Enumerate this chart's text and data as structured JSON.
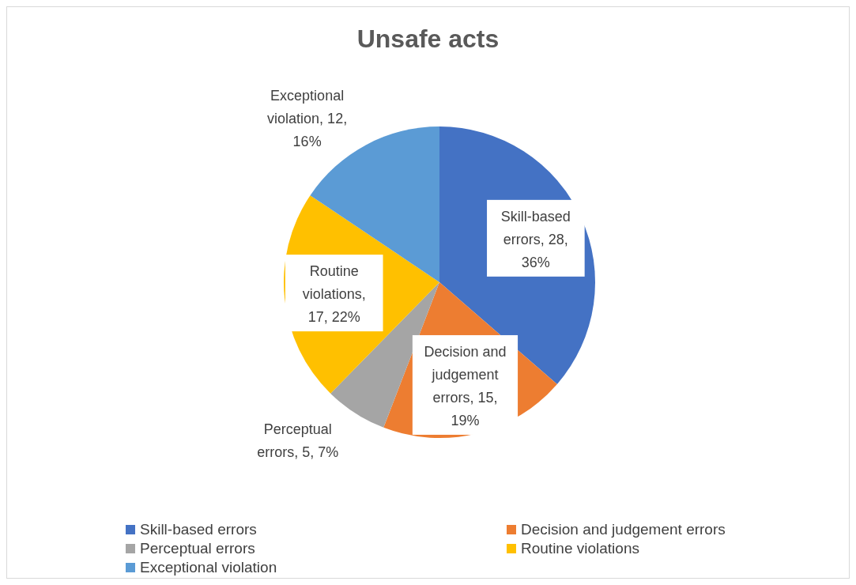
{
  "chart_data": {
    "type": "pie",
    "title": "Unsafe acts",
    "categories": [
      "Skill-based errors",
      "Decision and judgement errors",
      "Perceptual errors",
      "Routine violations",
      "Exceptional violation"
    ],
    "values": [
      28,
      15,
      5,
      17,
      12
    ],
    "colors": [
      "#4472c4",
      "#ed7d31",
      "#a5a5a5",
      "#ffc000",
      "#5b9bd5"
    ],
    "value_labels": [
      "Skill-based errors, 28, 36%",
      "Decision and judgement errors, 15, 19%",
      "Perceptual errors, 5, 7%",
      "Routine violations, 17, 22%",
      "Exceptional violation, 12, 16%"
    ],
    "legend": "bottom"
  }
}
